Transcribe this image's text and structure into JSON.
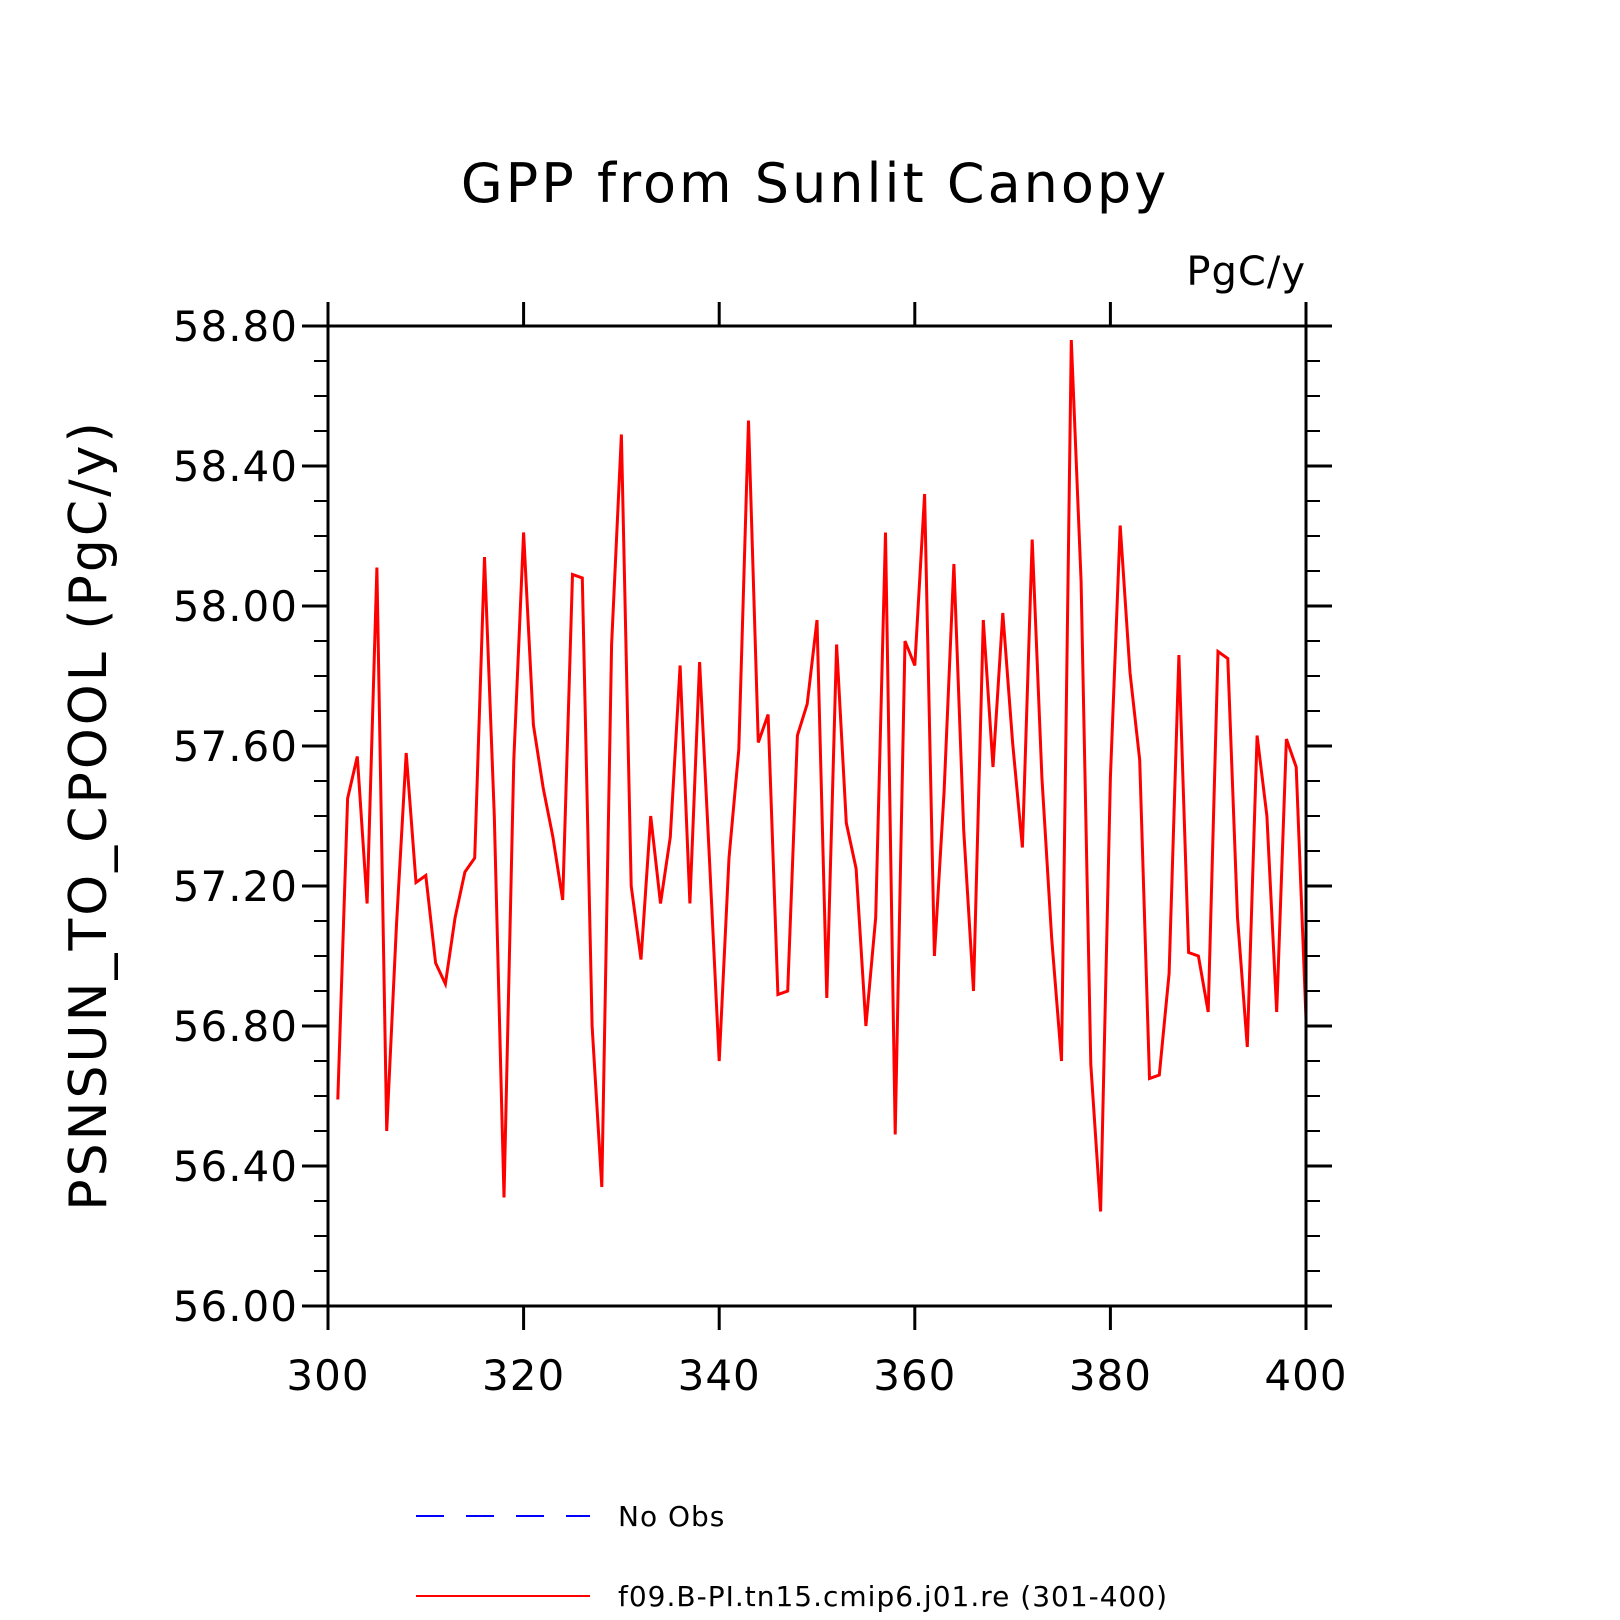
{
  "chart_data": {
    "type": "line",
    "title": "GPP from Sunlit Canopy",
    "units_label": "PgC/y",
    "ylabel": "PSNSUN_TO_CPOOL  (PgC/y)",
    "xlabel": "",
    "xlim": [
      300,
      400
    ],
    "ylim": [
      56.0,
      58.8
    ],
    "x_ticks": [
      300,
      320,
      340,
      360,
      380,
      400
    ],
    "x_tick_labels": [
      "300",
      "320",
      "340",
      "360",
      "380",
      "400"
    ],
    "y_ticks": [
      56.0,
      56.4,
      56.8,
      57.2,
      57.6,
      58.0,
      58.4,
      58.8
    ],
    "y_tick_labels": [
      "56.00",
      "56.40",
      "56.80",
      "57.20",
      "57.60",
      "58.00",
      "58.40",
      "58.80"
    ],
    "grid": false,
    "legend_position": "bottom",
    "series": [
      {
        "name": "No Obs",
        "color": "#0000ff",
        "dash": "dashed",
        "x": [],
        "y": []
      },
      {
        "name": "f09.B-PI.tn15.cmip6.j01.re (301-400)",
        "color": "#ff0000",
        "dash": "solid",
        "x": [
          301,
          302,
          303,
          304,
          305,
          306,
          307,
          308,
          309,
          310,
          311,
          312,
          313,
          314,
          315,
          316,
          317,
          318,
          319,
          320,
          321,
          322,
          323,
          324,
          325,
          326,
          327,
          328,
          329,
          330,
          331,
          332,
          333,
          334,
          335,
          336,
          337,
          338,
          339,
          340,
          341,
          342,
          343,
          344,
          345,
          346,
          347,
          348,
          349,
          350,
          351,
          352,
          353,
          354,
          355,
          356,
          357,
          358,
          359,
          360,
          361,
          362,
          363,
          364,
          365,
          366,
          367,
          368,
          369,
          370,
          371,
          372,
          373,
          374,
          375,
          376,
          377,
          378,
          379,
          380,
          381,
          382,
          383,
          384,
          385,
          386,
          387,
          388,
          389,
          390,
          391,
          392,
          393,
          394,
          395,
          396,
          397,
          398,
          399,
          400
        ],
        "y": [
          56.59,
          57.45,
          57.57,
          57.15,
          58.11,
          56.5,
          57.09,
          57.58,
          57.21,
          57.23,
          56.98,
          56.92,
          57.11,
          57.24,
          57.28,
          58.14,
          57.4,
          56.31,
          57.56,
          58.21,
          57.66,
          57.48,
          57.34,
          57.16,
          58.09,
          58.08,
          56.8,
          56.34,
          57.89,
          58.49,
          57.2,
          56.99,
          57.4,
          57.15,
          57.34,
          57.83,
          57.15,
          57.84,
          57.28,
          56.7,
          57.28,
          57.59,
          58.53,
          57.61,
          57.69,
          56.89,
          56.9,
          57.63,
          57.72,
          57.96,
          56.88,
          57.89,
          57.38,
          57.25,
          56.8,
          57.11,
          58.21,
          56.49,
          57.9,
          57.83,
          58.32,
          57.0,
          57.47,
          58.12,
          57.36,
          56.9,
          57.96,
          57.54,
          57.98,
          57.61,
          57.31,
          58.19,
          57.51,
          57.05,
          56.7,
          58.76,
          58.07,
          56.69,
          56.27,
          57.51,
          58.23,
          57.81,
          57.56,
          56.65,
          56.66,
          56.95,
          57.86,
          57.01,
          57.0,
          56.84,
          57.87,
          57.85,
          57.11,
          56.74,
          57.63,
          57.4,
          56.84,
          57.62,
          57.54,
          56.82
        ]
      }
    ]
  }
}
